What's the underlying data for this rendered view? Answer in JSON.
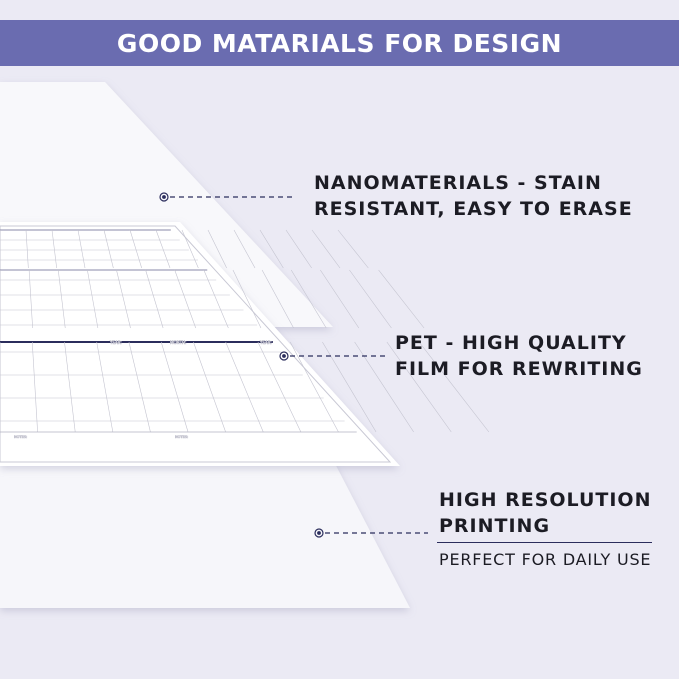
{
  "banner": {
    "title": "GOOD MATARIALS FOR DESIGN",
    "color": "#6a6cb0"
  },
  "callouts": [
    {
      "line1": "NANOMATERIALS - STAIN",
      "line2": "RESISTANT, EASY TO ERASE"
    },
    {
      "line1": "PET - HIGH QUALITY",
      "line2": "FILM FOR REWRITING"
    },
    {
      "line1": "HIGH RESOLUTION",
      "line2": "PRINTING",
      "subtitle": "PERFECT FOR DAILY USE"
    }
  ],
  "calendar": {
    "headers": [
      "YEAR:",
      "MONTH:",
      "YEAR:"
    ],
    "notes_label": "NOTES:"
  }
}
